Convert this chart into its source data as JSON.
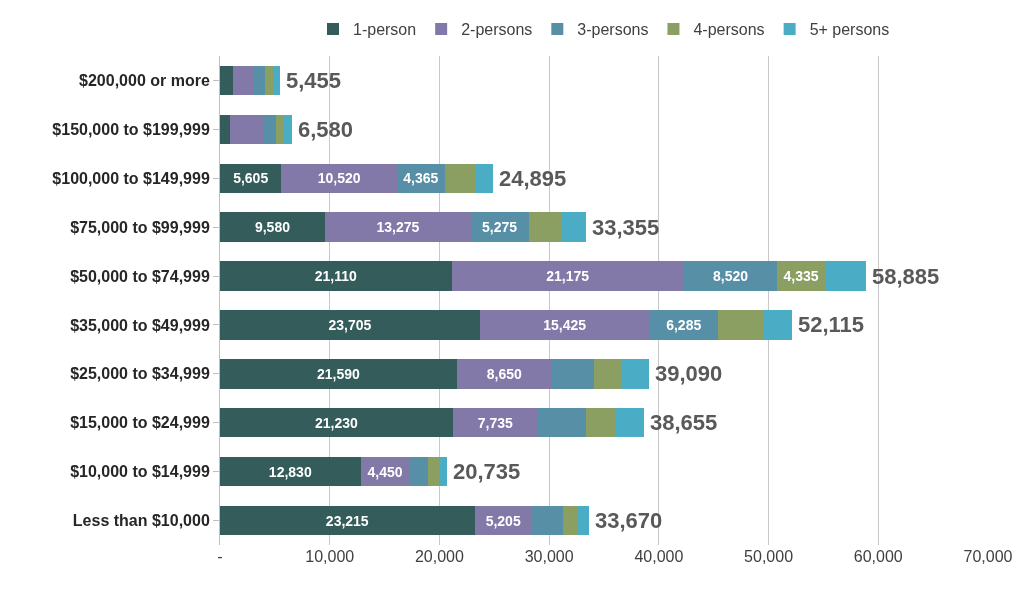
{
  "chart_data": {
    "type": "bar",
    "orientation": "horizontal",
    "stacked": true,
    "categories": [
      "$200,000 or more",
      "$150,000 to $199,999",
      "$100,000 to $149,999",
      "$75,000 to $99,999",
      "$50,000 to $74,999",
      "$35,000 to $49,999",
      "$25,000 to $34,999",
      "$15,000 to $24,999",
      "$10,000 to $14,999",
      "Less than $10,000"
    ],
    "series": [
      {
        "name": "1-person",
        "color": "#335c5a",
        "values": [
          1180,
          900,
          5605,
          9580,
          21110,
          23705,
          21590,
          21230,
          12830,
          23215
        ],
        "value_labels": [
          null,
          null,
          "5,605",
          "9,580",
          "21,110",
          "23,705",
          "21,590",
          "21,230",
          "12,830",
          "23,215"
        ]
      },
      {
        "name": "2-persons",
        "color": "#8279a8",
        "values": [
          1860,
          2980,
          10520,
          13275,
          21175,
          15425,
          8650,
          7735,
          4450,
          5205
        ],
        "value_labels": [
          null,
          null,
          "10,520",
          "13,275",
          "21,175",
          "15,425",
          "8,650",
          "7,735",
          "4,450",
          "5,205"
        ]
      },
      {
        "name": "3-persons",
        "color": "#568fa6",
        "values": [
          1020,
          1210,
          4365,
          5275,
          8520,
          6285,
          3850,
          4385,
          1680,
          2880
        ],
        "value_labels": [
          null,
          null,
          "4,365",
          "5,275",
          "8,520",
          "6,285",
          null,
          null,
          null,
          null
        ]
      },
      {
        "name": "4-persons",
        "color": "#8c9f62",
        "values": [
          775,
          715,
          2760,
          3020,
          4335,
          4040,
          2560,
          2760,
          1090,
          1310
        ],
        "value_labels": [
          null,
          null,
          null,
          null,
          "4,335",
          null,
          null,
          null,
          null,
          null
        ]
      },
      {
        "name": "5+ persons",
        "color": "#4bacc6",
        "values": [
          620,
          775,
          1645,
          2205,
          3745,
          2660,
          2440,
          2545,
          685,
          1060
        ],
        "value_labels": [
          null,
          null,
          null,
          null,
          null,
          null,
          null,
          null,
          null,
          null
        ]
      }
    ],
    "totals": [
      "5,455",
      "6,580",
      "24,895",
      "33,355",
      "58,885",
      "52,115",
      "39,090",
      "38,655",
      "20,735",
      "33,670"
    ],
    "xlim": [
      0,
      70000
    ],
    "xticks": [
      {
        "value": 0,
        "label": "-"
      },
      {
        "value": 10000,
        "label": "10,000"
      },
      {
        "value": 20000,
        "label": "20,000"
      },
      {
        "value": 30000,
        "label": "30,000"
      },
      {
        "value": 40000,
        "label": "40,000"
      },
      {
        "value": 50000,
        "label": "50,000"
      },
      {
        "value": 60000,
        "label": "60,000"
      },
      {
        "value": 70000,
        "label": "70,000"
      }
    ],
    "grid": "x",
    "legend": "top"
  }
}
